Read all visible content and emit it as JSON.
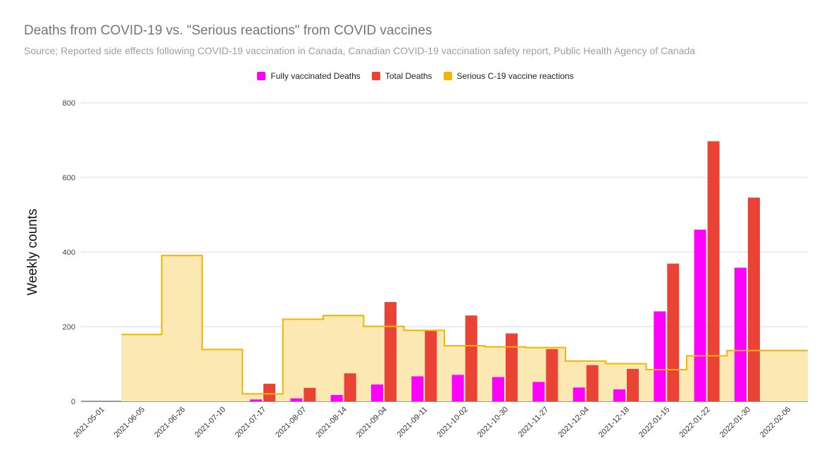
{
  "chart_data": {
    "type": "bar",
    "title": "Deaths from COVID-19 vs. \"Serious reactions\" from COVID vaccines",
    "subtitle": "Source; Reported side effects following COVID-19 vaccination in Canada, Canadian COVID-19 vaccination safety report, Public Health Agency of Canada",
    "ylabel": "Weekly counts",
    "xlabel": "",
    "ylim": [
      0,
      800
    ],
    "yticks": [
      "0",
      "200",
      "400",
      "600",
      "800"
    ],
    "grid": true,
    "legend_position": "top",
    "categories": [
      "2021-05-01",
      "2021-06-05",
      "2021-06-26",
      "2021-07-10",
      "2021-07-17",
      "2021-08-07",
      "2021-08-14",
      "2021-09-04",
      "2021-09-11",
      "2021-10-02",
      "2021-10-30",
      "2021-11-27",
      "2021-12-04",
      "2021-12-18",
      "2022-01-15",
      "2022-01-22",
      "2022-01-30",
      "2022-02-06"
    ],
    "series": [
      {
        "name": "Fully vaccinated Deaths",
        "type": "bar",
        "color": "#ff00ff",
        "values": [
          null,
          null,
          null,
          null,
          5,
          8,
          17,
          45,
          67,
          71,
          65,
          52,
          37,
          32,
          241,
          460,
          358,
          null
        ]
      },
      {
        "name": "Total Deaths",
        "type": "bar",
        "color": "#ea4335",
        "values": [
          null,
          null,
          null,
          null,
          47,
          36,
          75,
          266,
          190,
          230,
          182,
          140,
          97,
          87,
          369,
          697,
          546,
          null
        ]
      },
      {
        "name": "Serious C-19 vaccine reactions",
        "type": "stepped-area",
        "color": "#f4b400",
        "values": [
          null,
          179,
          391,
          139,
          20,
          220,
          230,
          201,
          190,
          149,
          146,
          144,
          108,
          101,
          85,
          122,
          136,
          136
        ]
      }
    ]
  }
}
